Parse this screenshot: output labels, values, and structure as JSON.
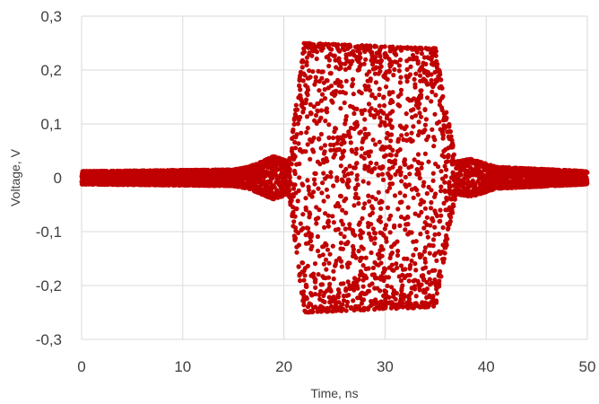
{
  "chart_data": {
    "type": "scatter",
    "title": "",
    "xlabel": "Time, ns",
    "ylabel": "Voltage, V",
    "xlim": [
      0,
      50
    ],
    "ylim": [
      -0.3,
      0.3
    ],
    "x_ticks": [
      0,
      10,
      20,
      30,
      40,
      50
    ],
    "y_ticks": [
      -0.3,
      -0.2,
      -0.1,
      0,
      0.1,
      0.2,
      0.3
    ],
    "x_tick_labels": [
      "0",
      "10",
      "20",
      "30",
      "40",
      "50"
    ],
    "y_tick_labels": [
      "-0,3",
      "-0,2",
      "-0,1",
      "0",
      "0,1",
      "0,2",
      "0,3"
    ],
    "grid": true,
    "legend": "none",
    "marker_color": "#c00000",
    "series": [
      {
        "envelope": [
          {
            "x": 0,
            "amplitude": 0.012
          },
          {
            "x": 15,
            "amplitude": 0.015
          },
          {
            "x": 16.5,
            "amplitude": 0.02
          },
          {
            "x": 19,
            "amplitude": 0.04
          },
          {
            "x": 20.5,
            "amplitude": 0.03
          },
          {
            "x": 22,
            "amplitude": 0.25
          },
          {
            "x": 35,
            "amplitude": 0.24
          },
          {
            "x": 37,
            "amplitude": 0.03
          },
          {
            "x": 38.5,
            "amplitude": 0.035
          },
          {
            "x": 41,
            "amplitude": 0.02
          },
          {
            "x": 50,
            "amplitude": 0.012
          }
        ]
      }
    ]
  }
}
